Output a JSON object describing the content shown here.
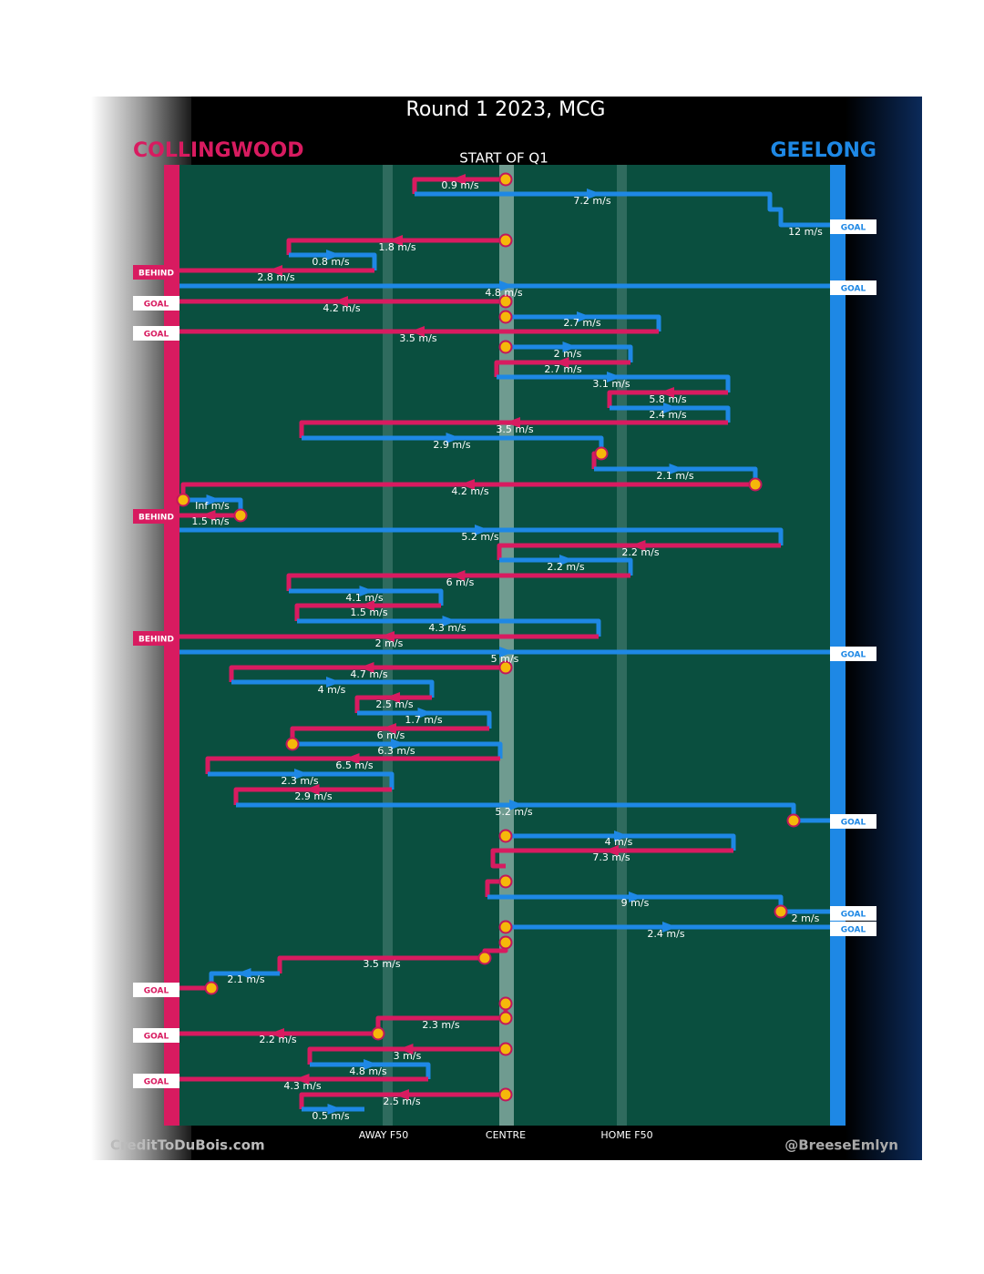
{
  "title": "Round 1 2023, MCG",
  "home_team": "COLLINGWOOD",
  "away_team": "GEELONG",
  "period": "START OF Q1",
  "field_labels": [
    "AWAY F50",
    "CENTRE",
    "HOME F50"
  ],
  "credits": [
    "CreditToDuBois.com",
    "@BreeseEmlyn"
  ],
  "speeds": [
    "0.9 m/s",
    "7.2 m/s",
    "12 m/s",
    "1.8 m/s",
    "0.8 m/s",
    "2.8 m/s",
    "4.8 m/s",
    "4.2 m/s",
    "2.7 m/s",
    "3.5 m/s",
    "2 m/s",
    "2.7 m/s",
    "3.1 m/s",
    "5.8 m/s",
    "2.4 m/s",
    "3.5 m/s",
    "2.9 m/s",
    "2.1 m/s",
    "4.2 m/s",
    "Inf m/s",
    "1.5 m/s",
    "5.2 m/s",
    "2.2 m/s",
    "2.2 m/s",
    "6 m/s",
    "4.1 m/s",
    "1.5 m/s",
    "4.3 m/s",
    "2 m/s",
    "5 m/s",
    "4.7 m/s",
    "4 m/s",
    "2.5 m/s",
    "1.7 m/s",
    "6 m/s",
    "6.3 m/s",
    "6.5 m/s",
    "2.3 m/s",
    "2.9 m/s",
    "5.2 m/s",
    "4 m/s",
    "7.3 m/s",
    "9 m/s",
    "2 m/s",
    "2.4 m/s",
    "3.5 m/s",
    "2.1 m/s",
    "2.3 m/s",
    "2.2 m/s",
    "3 m/s",
    "4.8 m/s",
    "4.3 m/s",
    "2.5 m/s",
    "0.5 m/s"
  ],
  "outcomes": [
    "GOAL",
    "BEHIND",
    "GOAL",
    "GOAL",
    "GOAL",
    "BEHIND",
    "BEHIND",
    "GOAL",
    "GOAL",
    "GOAL",
    "GOAL",
    "GOAL",
    "GOAL",
    "GOAL"
  ]
}
